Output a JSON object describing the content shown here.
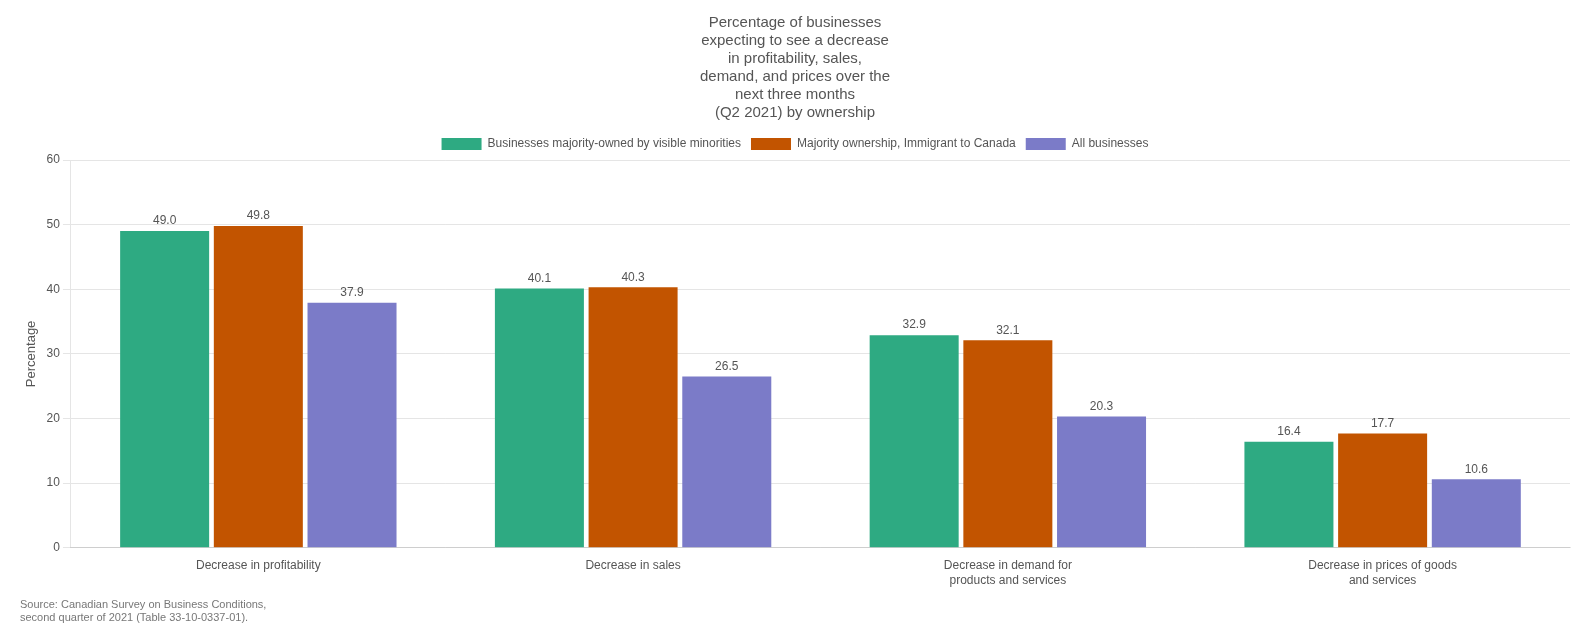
{
  "chart_data": {
    "type": "bar",
    "title": [
      "Percentage of businesses",
      "expecting to see a decrease",
      "in profitability, sales,",
      "demand, and prices over the",
      "next three months",
      "(Q2 2021) by ownership"
    ],
    "annotations": [
      "Source: Canadian Survey on Business Conditions,\nsecond quarter of 2021 (Table 33-10-0337-01)."
    ],
    "ylabel": "Percentage",
    "categories": [
      "Decrease in profitability",
      "Decrease in sales",
      "Decrease in demand for\nproducts and services",
      "Decrease in prices of goods\nand services"
    ],
    "series": [
      {
        "name": "Businesses majority-owned by visible minorities",
        "color": "#2EAA82",
        "values": [
          49.0,
          40.1,
          32.9,
          16.4
        ],
        "value_labels": [
          "49.0",
          "40.1",
          "32.9",
          "16.4"
        ]
      },
      {
        "name": "Majority ownership, Immigrant to Canada",
        "color": "#C25400",
        "values": [
          49.8,
          40.3,
          32.1,
          17.7
        ],
        "value_labels": [
          "49.8",
          "40.3",
          "32.1",
          "17.7"
        ]
      },
      {
        "name": "All businesses",
        "color": "#7B7BC8",
        "values": [
          37.9,
          26.5,
          20.3,
          10.6
        ],
        "value_labels": [
          "37.9",
          "26.5",
          "20.3",
          "10.6"
        ]
      }
    ],
    "ylim": [
      0,
      60
    ],
    "yticks": [
      0,
      10,
      20,
      30,
      40,
      50,
      60
    ],
    "grid": true,
    "legend": "top",
    "data_labels": true
  }
}
